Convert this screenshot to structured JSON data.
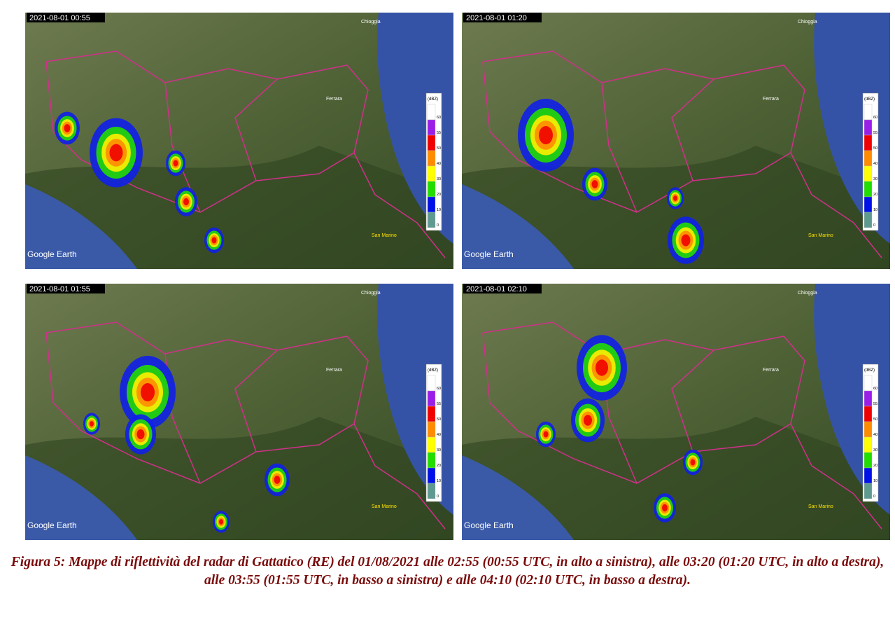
{
  "panels": [
    {
      "timestamp": "2021-08-01 00:55"
    },
    {
      "timestamp": "2021-08-01 01:20"
    },
    {
      "timestamp": "2021-08-01 01:55"
    },
    {
      "timestamp": "2021-08-01 02:10"
    }
  ],
  "map": {
    "brand": "Google Earth",
    "places": [
      "Chioggia",
      "Ferrara",
      "San Marino"
    ]
  },
  "legend": {
    "unit": "(dBZ)",
    "labels": [
      "60",
      "55",
      "50",
      "40",
      "30",
      "20",
      "10",
      "0"
    ]
  },
  "caption": "Figura 5: Mappe di riflettività del radar di Gattatico (RE) del 01/08/2021 alle 02:55 (00:55 UTC, in alto a sinistra), alle 03:20 (01:20 UTC, in alto a destra), alle 03:55 (01:55 UTC, in basso a sinistra) e alle 04:10 (02:10 UTC, in basso a destra)."
}
